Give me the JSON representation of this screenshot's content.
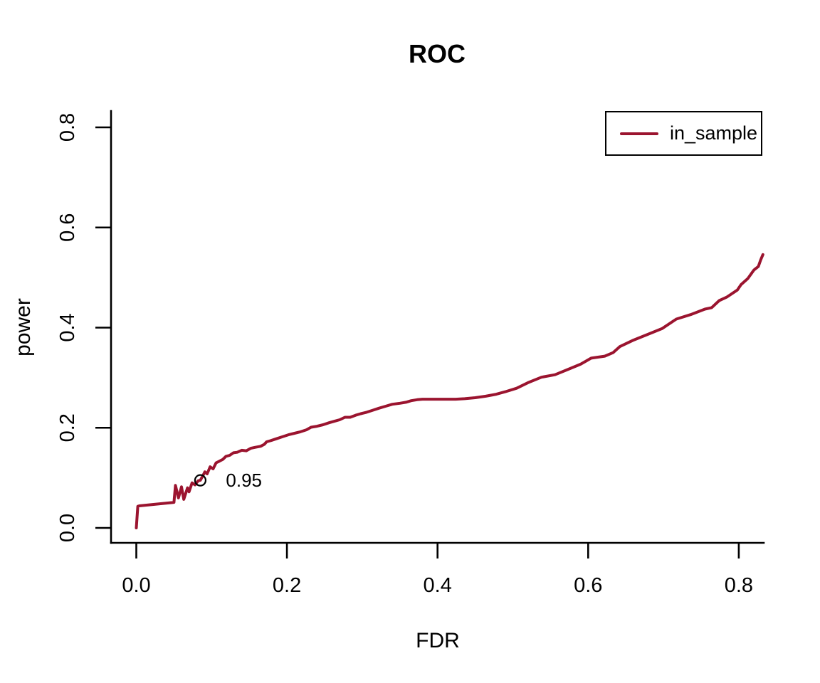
{
  "title": "ROC",
  "colors": {
    "curve": "#9B142F",
    "axis": "#000000",
    "background": "#FFFFFF",
    "marker": "#000000",
    "annotation_text": "#9B142F"
  },
  "chart_data": {
    "type": "line",
    "title": "ROC",
    "xlabel": "FDR",
    "ylabel": "power",
    "xlim": [
      -0.033,
      0.833
    ],
    "ylim": [
      -0.03,
      0.833
    ],
    "grid": false,
    "x_ticks": [
      0.0,
      0.2,
      0.4,
      0.6,
      0.8
    ],
    "y_ticks": [
      0.0,
      0.2,
      0.4,
      0.6,
      0.8
    ],
    "x_tick_labels": [
      "0.0",
      "0.2",
      "0.4",
      "0.6",
      "0.8"
    ],
    "y_tick_labels": [
      "0.0",
      "0.2",
      "0.4",
      "0.6",
      "0.8"
    ],
    "legend": {
      "position": "top-right",
      "entries": [
        {
          "label": "in_sample",
          "color": "#9B142F"
        }
      ]
    },
    "series": [
      {
        "name": "in_sample",
        "color": "#9B142F",
        "points": [
          [
            0.0,
            0.0
          ],
          [
            0.002,
            0.043
          ],
          [
            0.004,
            0.044
          ],
          [
            0.03,
            0.048
          ],
          [
            0.05,
            0.051
          ],
          [
            0.052,
            0.085
          ],
          [
            0.056,
            0.06
          ],
          [
            0.06,
            0.082
          ],
          [
            0.063,
            0.057
          ],
          [
            0.068,
            0.08
          ],
          [
            0.07,
            0.072
          ],
          [
            0.074,
            0.09
          ],
          [
            0.078,
            0.086
          ],
          [
            0.082,
            0.094
          ],
          [
            0.085,
            0.095
          ],
          [
            0.088,
            0.103
          ],
          [
            0.091,
            0.112
          ],
          [
            0.094,
            0.108
          ],
          [
            0.098,
            0.122
          ],
          [
            0.102,
            0.118
          ],
          [
            0.106,
            0.13
          ],
          [
            0.11,
            0.133
          ],
          [
            0.115,
            0.137
          ],
          [
            0.119,
            0.143
          ],
          [
            0.124,
            0.145
          ],
          [
            0.129,
            0.15
          ],
          [
            0.134,
            0.151
          ],
          [
            0.14,
            0.155
          ],
          [
            0.146,
            0.154
          ],
          [
            0.152,
            0.159
          ],
          [
            0.158,
            0.161
          ],
          [
            0.165,
            0.163
          ],
          [
            0.17,
            0.167
          ],
          [
            0.173,
            0.172
          ],
          [
            0.178,
            0.174
          ],
          [
            0.186,
            0.178
          ],
          [
            0.194,
            0.182
          ],
          [
            0.202,
            0.186
          ],
          [
            0.21,
            0.189
          ],
          [
            0.218,
            0.192
          ],
          [
            0.226,
            0.196
          ],
          [
            0.232,
            0.201
          ],
          [
            0.24,
            0.203
          ],
          [
            0.248,
            0.206
          ],
          [
            0.256,
            0.21
          ],
          [
            0.263,
            0.213
          ],
          [
            0.27,
            0.216
          ],
          [
            0.277,
            0.221
          ],
          [
            0.284,
            0.221
          ],
          [
            0.291,
            0.225
          ],
          [
            0.298,
            0.228
          ],
          [
            0.306,
            0.231
          ],
          [
            0.314,
            0.235
          ],
          [
            0.322,
            0.239
          ],
          [
            0.331,
            0.243
          ],
          [
            0.34,
            0.247
          ],
          [
            0.35,
            0.249
          ],
          [
            0.358,
            0.251
          ],
          [
            0.365,
            0.254
          ],
          [
            0.373,
            0.256
          ],
          [
            0.38,
            0.257
          ],
          [
            0.424,
            0.257
          ],
          [
            0.436,
            0.258
          ],
          [
            0.45,
            0.26
          ],
          [
            0.464,
            0.263
          ],
          [
            0.478,
            0.267
          ],
          [
            0.49,
            0.272
          ],
          [
            0.505,
            0.279
          ],
          [
            0.52,
            0.29
          ],
          [
            0.538,
            0.301
          ],
          [
            0.556,
            0.306
          ],
          [
            0.574,
            0.317
          ],
          [
            0.59,
            0.327
          ],
          [
            0.604,
            0.339
          ],
          [
            0.622,
            0.343
          ],
          [
            0.633,
            0.35
          ],
          [
            0.642,
            0.362
          ],
          [
            0.66,
            0.375
          ],
          [
            0.68,
            0.387
          ],
          [
            0.698,
            0.398
          ],
          [
            0.717,
            0.417
          ],
          [
            0.736,
            0.426
          ],
          [
            0.755,
            0.437
          ],
          [
            0.764,
            0.44
          ],
          [
            0.774,
            0.454
          ],
          [
            0.784,
            0.461
          ],
          [
            0.798,
            0.475
          ],
          [
            0.803,
            0.486
          ],
          [
            0.812,
            0.498
          ],
          [
            0.82,
            0.515
          ],
          [
            0.826,
            0.522
          ],
          [
            0.829,
            0.535
          ],
          [
            0.832,
            0.546
          ]
        ]
      }
    ],
    "annotations": [
      {
        "type": "point-label",
        "label": "0.95",
        "x": 0.085,
        "y": 0.095,
        "label_x": 0.119,
        "label_y": 0.092,
        "marker": "open-circle",
        "marker_color": "#000000",
        "label_color": "#9B142F"
      }
    ]
  }
}
